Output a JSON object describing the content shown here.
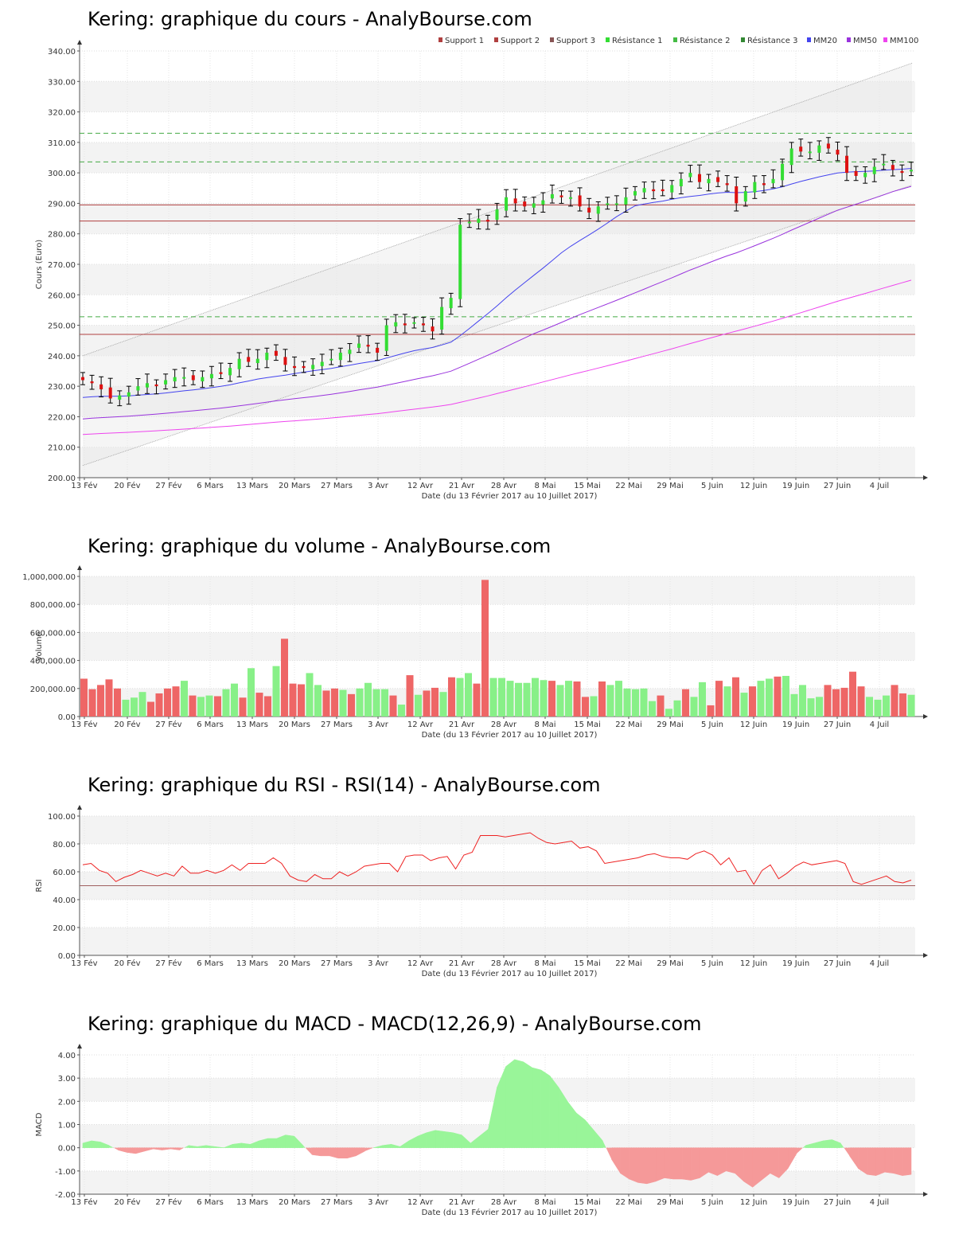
{
  "x_axis": {
    "label": "Date (du 13 Février 2017 au 10 Juillet 2017)",
    "ticks": [
      "13 Fév",
      "20 Fév",
      "27 Fév",
      "6 Mars",
      "13 Mars",
      "20 Mars",
      "27 Mars",
      "3 Avr",
      "12 Avr",
      "21 Avr",
      "28 Avr",
      "8 Mai",
      "15 Mai",
      "22 Mai",
      "29 Mai",
      "5 Juin",
      "12 Juin",
      "19 Juin",
      "27 Juin",
      "4 Juil"
    ]
  },
  "colors": {
    "up": "#33dd33",
    "down": "#dd1111",
    "support": "#b04040",
    "resistance": "#44aa44",
    "mm20": "#4444ee",
    "mm50": "#9933dd",
    "mm100": "#ee44ee",
    "vol_up": "#88f088",
    "vol_down": "#ee6666",
    "rsi": "#ee2222",
    "macd_pos": "#99f599",
    "macd_neg": "#f59999"
  },
  "chart_data": [
    {
      "type": "candlestick",
      "title": "Kering: graphique du cours - AnalyBourse.com",
      "ylabel": "Cours (Euro)",
      "ylim": [
        200,
        340
      ],
      "yticks": [
        "200.00",
        "210.00",
        "220.00",
        "230.00",
        "240.00",
        "250.00",
        "260.00",
        "270.00",
        "280.00",
        "290.00",
        "300.00",
        "310.00",
        "320.00",
        "330.00",
        "340.00"
      ],
      "legend": [
        "Support 1",
        "Support 2",
        "Support 3",
        "Résistance 1",
        "Résistance 2",
        "Résistance 3",
        "MM20",
        "MM50",
        "MM100"
      ],
      "legend_placement": "top-right",
      "support_levels": [
        289.5,
        284.2,
        247.0
      ],
      "resistance_levels": [
        313.0,
        303.6,
        252.8
      ],
      "close": [
        232,
        231,
        229,
        226,
        227,
        228,
        230,
        231,
        230,
        232,
        233,
        233,
        232,
        233,
        234,
        234,
        236,
        239,
        238,
        239,
        241,
        240,
        237,
        236,
        236,
        237,
        238,
        239,
        241,
        242,
        244,
        243,
        241,
        250,
        251,
        250,
        251,
        250,
        248,
        256,
        259,
        283,
        284,
        285,
        284,
        288,
        292,
        290,
        289,
        290,
        291,
        293,
        292,
        292,
        289,
        287,
        289,
        290,
        290,
        292,
        294,
        295,
        294,
        294,
        296,
        298,
        300,
        297,
        298,
        297,
        296,
        290,
        294,
        297,
        296,
        298,
        303,
        308,
        307,
        307,
        309,
        308,
        306,
        300,
        299,
        300,
        302,
        303,
        301,
        300,
        301
      ]
    },
    {
      "type": "bar",
      "title": "Kering: graphique du volume - AnalyBourse.com",
      "ylabel": "Volume",
      "ylim": [
        0,
        1000000
      ],
      "yticks": [
        "0.00",
        "200,000.00",
        "400,000.00",
        "600,000.00",
        "800,000.00",
        "1,000,000.00"
      ],
      "values": [
        270000,
        195000,
        225000,
        265000,
        200000,
        120000,
        135000,
        175000,
        105000,
        165000,
        200000,
        215000,
        255000,
        150000,
        140000,
        150000,
        145000,
        195000,
        235000,
        135000,
        345000,
        170000,
        145000,
        360000,
        555000,
        235000,
        230000,
        310000,
        225000,
        185000,
        200000,
        190000,
        160000,
        200000,
        240000,
        195000,
        195000,
        150000,
        85000,
        295000,
        155000,
        185000,
        205000,
        175000,
        280000,
        275000,
        310000,
        235000,
        975000,
        275000,
        275000,
        255000,
        240000,
        240000,
        275000,
        260000,
        255000,
        225000,
        255000,
        250000,
        140000,
        145000,
        250000,
        225000,
        255000,
        200000,
        195000,
        200000,
        110000,
        150000,
        55000,
        115000,
        195000,
        140000,
        245000,
        80000,
        255000,
        215000,
        280000,
        170000,
        215000,
        255000,
        270000,
        285000,
        290000,
        160000,
        225000,
        130000,
        140000,
        225000,
        195000,
        205000,
        320000,
        215000,
        140000,
        120000,
        150000,
        225000,
        165000,
        155000
      ],
      "up": [
        0,
        0,
        0,
        0,
        0,
        1,
        1,
        1,
        0,
        0,
        0,
        0,
        1,
        0,
        1,
        1,
        0,
        1,
        1,
        0,
        1,
        0,
        0,
        1,
        0,
        0,
        0,
        1,
        1,
        0,
        0,
        1,
        0,
        1,
        1,
        1,
        1,
        0,
        1,
        0,
        1,
        0,
        0,
        1,
        0,
        1,
        1,
        0,
        0,
        1,
        1,
        1,
        1,
        1,
        1,
        1,
        0,
        1,
        1,
        0,
        0,
        1,
        0,
        1,
        1,
        1,
        1,
        1,
        1,
        0,
        1,
        1,
        0,
        1,
        1,
        0,
        0,
        1,
        0,
        1,
        0,
        1,
        1,
        0,
        1,
        1,
        1,
        1,
        1,
        0,
        0,
        0,
        0,
        0,
        1,
        1,
        1,
        0,
        0,
        1
      ]
    },
    {
      "type": "line",
      "title": "Kering: graphique du RSI - RSI(14) - AnalyBourse.com",
      "ylabel": "RSI",
      "ylim": [
        0,
        100
      ],
      "yticks": [
        "0.00",
        "20.00",
        "40.00",
        "60.00",
        "80.00",
        "100.00"
      ],
      "reference_level": 50,
      "values": [
        65,
        66,
        61,
        59,
        53,
        56,
        58,
        61,
        59,
        57,
        59,
        57,
        64,
        59,
        59,
        61,
        59,
        61,
        65,
        61,
        66,
        66,
        66,
        70,
        66,
        57,
        54,
        53,
        58,
        55,
        55,
        60,
        57,
        60,
        64,
        65,
        66,
        66,
        60,
        71,
        72,
        72,
        68,
        70,
        71,
        62,
        72,
        74,
        86,
        86,
        86,
        85,
        86,
        87,
        88,
        84,
        81,
        80,
        81,
        82,
        77,
        78,
        75,
        66,
        67,
        68,
        69,
        70,
        72,
        73,
        71,
        70,
        70,
        69,
        73,
        75,
        72,
        65,
        70,
        60,
        61,
        51,
        61,
        65,
        55,
        59,
        64,
        67,
        65,
        66,
        67,
        68,
        66,
        53,
        51,
        53,
        55,
        57,
        53,
        52,
        54
      ]
    },
    {
      "type": "area",
      "title": "Kering: graphique du MACD - MACD(12,26,9) - AnalyBourse.com",
      "ylabel": "MACD",
      "ylim": [
        -2,
        4
      ],
      "yticks": [
        "-2.00",
        "-1.00",
        "0.00",
        "1.00",
        "2.00",
        "3.00",
        "4.00"
      ],
      "values": [
        0.2,
        0.3,
        0.25,
        0.1,
        -0.1,
        -0.2,
        -0.25,
        -0.15,
        -0.05,
        -0.1,
        -0.05,
        -0.1,
        0.1,
        0.05,
        0.1,
        0.05,
        0.0,
        0.15,
        0.2,
        0.15,
        0.3,
        0.4,
        0.4,
        0.55,
        0.5,
        0.1,
        -0.3,
        -0.35,
        -0.35,
        -0.45,
        -0.45,
        -0.35,
        -0.15,
        0.0,
        0.1,
        0.15,
        0.05,
        0.3,
        0.5,
        0.65,
        0.75,
        0.7,
        0.65,
        0.55,
        0.2,
        0.5,
        0.8,
        2.6,
        3.5,
        3.8,
        3.7,
        3.45,
        3.35,
        3.1,
        2.6,
        2.0,
        1.5,
        1.2,
        0.75,
        0.3,
        -0.5,
        -1.1,
        -1.35,
        -1.5,
        -1.55,
        -1.45,
        -1.3,
        -1.35,
        -1.35,
        -1.4,
        -1.3,
        -1.05,
        -1.2,
        -1.0,
        -1.1,
        -1.45,
        -1.7,
        -1.4,
        -1.1,
        -1.3,
        -0.9,
        -0.25,
        0.1,
        0.2,
        0.3,
        0.35,
        0.2,
        -0.35,
        -0.9,
        -1.15,
        -1.2,
        -1.05,
        -1.1,
        -1.2,
        -1.15
      ]
    }
  ]
}
